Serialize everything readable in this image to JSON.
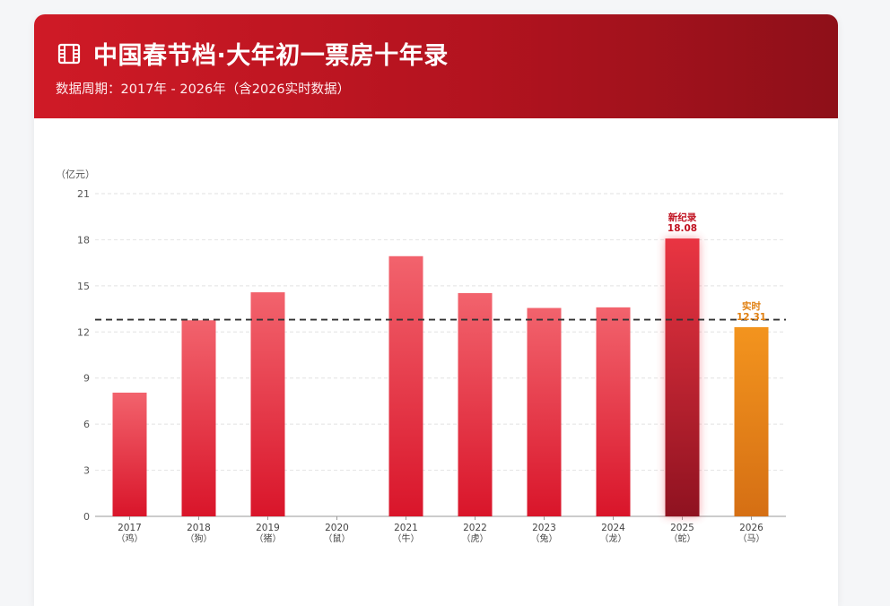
{
  "header": {
    "icon": "film-icon",
    "title": "中国春节档·大年初一票房十年录",
    "subtitle": "数据周期：2017年 - 2026年（含2026实时数据）"
  },
  "colors": {
    "bar_top": "#f2636d",
    "bar_bottom": "#d9152a",
    "record_top": "#e93542",
    "record_bottom": "#8f1220",
    "live_top": "#f3941e",
    "live_bottom": "#d56f14",
    "record_label": "#c0101f",
    "live_label": "#e07f10",
    "avg_line": "#333333"
  },
  "chart_data": {
    "type": "bar",
    "ylabel": "（亿元）",
    "ylim": [
      0,
      21
    ],
    "yticks": [
      0,
      3,
      6,
      9,
      12,
      15,
      18,
      21
    ],
    "grid": true,
    "categories": [
      "2017",
      "2018",
      "2019",
      "2020",
      "2021",
      "2022",
      "2023",
      "2024",
      "2025",
      "2026"
    ],
    "category_sublabels": [
      "（鸡）",
      "（狗）",
      "（猪）",
      "（鼠）",
      "（牛）",
      "（虎）",
      "（兔）",
      "（龙）",
      "（蛇）",
      "（马）"
    ],
    "values": [
      8.05,
      12.76,
      14.58,
      null,
      16.93,
      14.53,
      13.56,
      13.6,
      18.08,
      12.31
    ],
    "reference_line": {
      "value": 12.8,
      "style": "dashed"
    },
    "annotations": [
      {
        "category": "2025",
        "label": "新纪录",
        "value_text": "18.08",
        "kind": "record"
      },
      {
        "category": "2026",
        "label": "实时",
        "value_text": "12.31",
        "kind": "live"
      }
    ]
  }
}
